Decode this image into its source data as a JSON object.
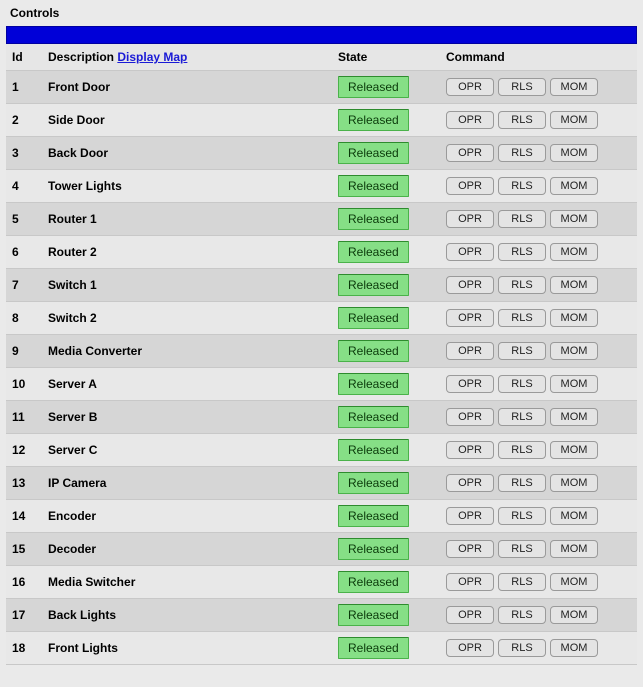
{
  "panel": {
    "title": "Controls"
  },
  "header": {
    "id": "Id",
    "description": "Description",
    "display_map_link": "Display Map",
    "state": "State",
    "command": "Command"
  },
  "buttons": {
    "opr": "OPR",
    "rls": "RLS",
    "mom": "MOM"
  },
  "state_label": "Released",
  "colors": {
    "header_bar": "#0000d8",
    "row_odd": "#d6d6d6",
    "row_even": "#e8e8e8",
    "state_bg": "#86df86",
    "state_border": "#4ab24a",
    "link": "#1a1ad6"
  },
  "rows": [
    {
      "id": "1",
      "description": "Front Door",
      "state": "Released"
    },
    {
      "id": "2",
      "description": "Side Door",
      "state": "Released"
    },
    {
      "id": "3",
      "description": "Back Door",
      "state": "Released"
    },
    {
      "id": "4",
      "description": "Tower Lights",
      "state": "Released"
    },
    {
      "id": "5",
      "description": "Router 1",
      "state": "Released"
    },
    {
      "id": "6",
      "description": "Router 2",
      "state": "Released"
    },
    {
      "id": "7",
      "description": "Switch 1",
      "state": "Released"
    },
    {
      "id": "8",
      "description": "Switch 2",
      "state": "Released"
    },
    {
      "id": "9",
      "description": "Media Converter",
      "state": "Released"
    },
    {
      "id": "10",
      "description": "Server A",
      "state": "Released"
    },
    {
      "id": "11",
      "description": "Server B",
      "state": "Released"
    },
    {
      "id": "12",
      "description": "Server C",
      "state": "Released"
    },
    {
      "id": "13",
      "description": "IP Camera",
      "state": "Released"
    },
    {
      "id": "14",
      "description": "Encoder",
      "state": "Released"
    },
    {
      "id": "15",
      "description": "Decoder",
      "state": "Released"
    },
    {
      "id": "16",
      "description": "Media Switcher",
      "state": "Released"
    },
    {
      "id": "17",
      "description": "Back Lights",
      "state": "Released"
    },
    {
      "id": "18",
      "description": "Front Lights",
      "state": "Released"
    }
  ]
}
